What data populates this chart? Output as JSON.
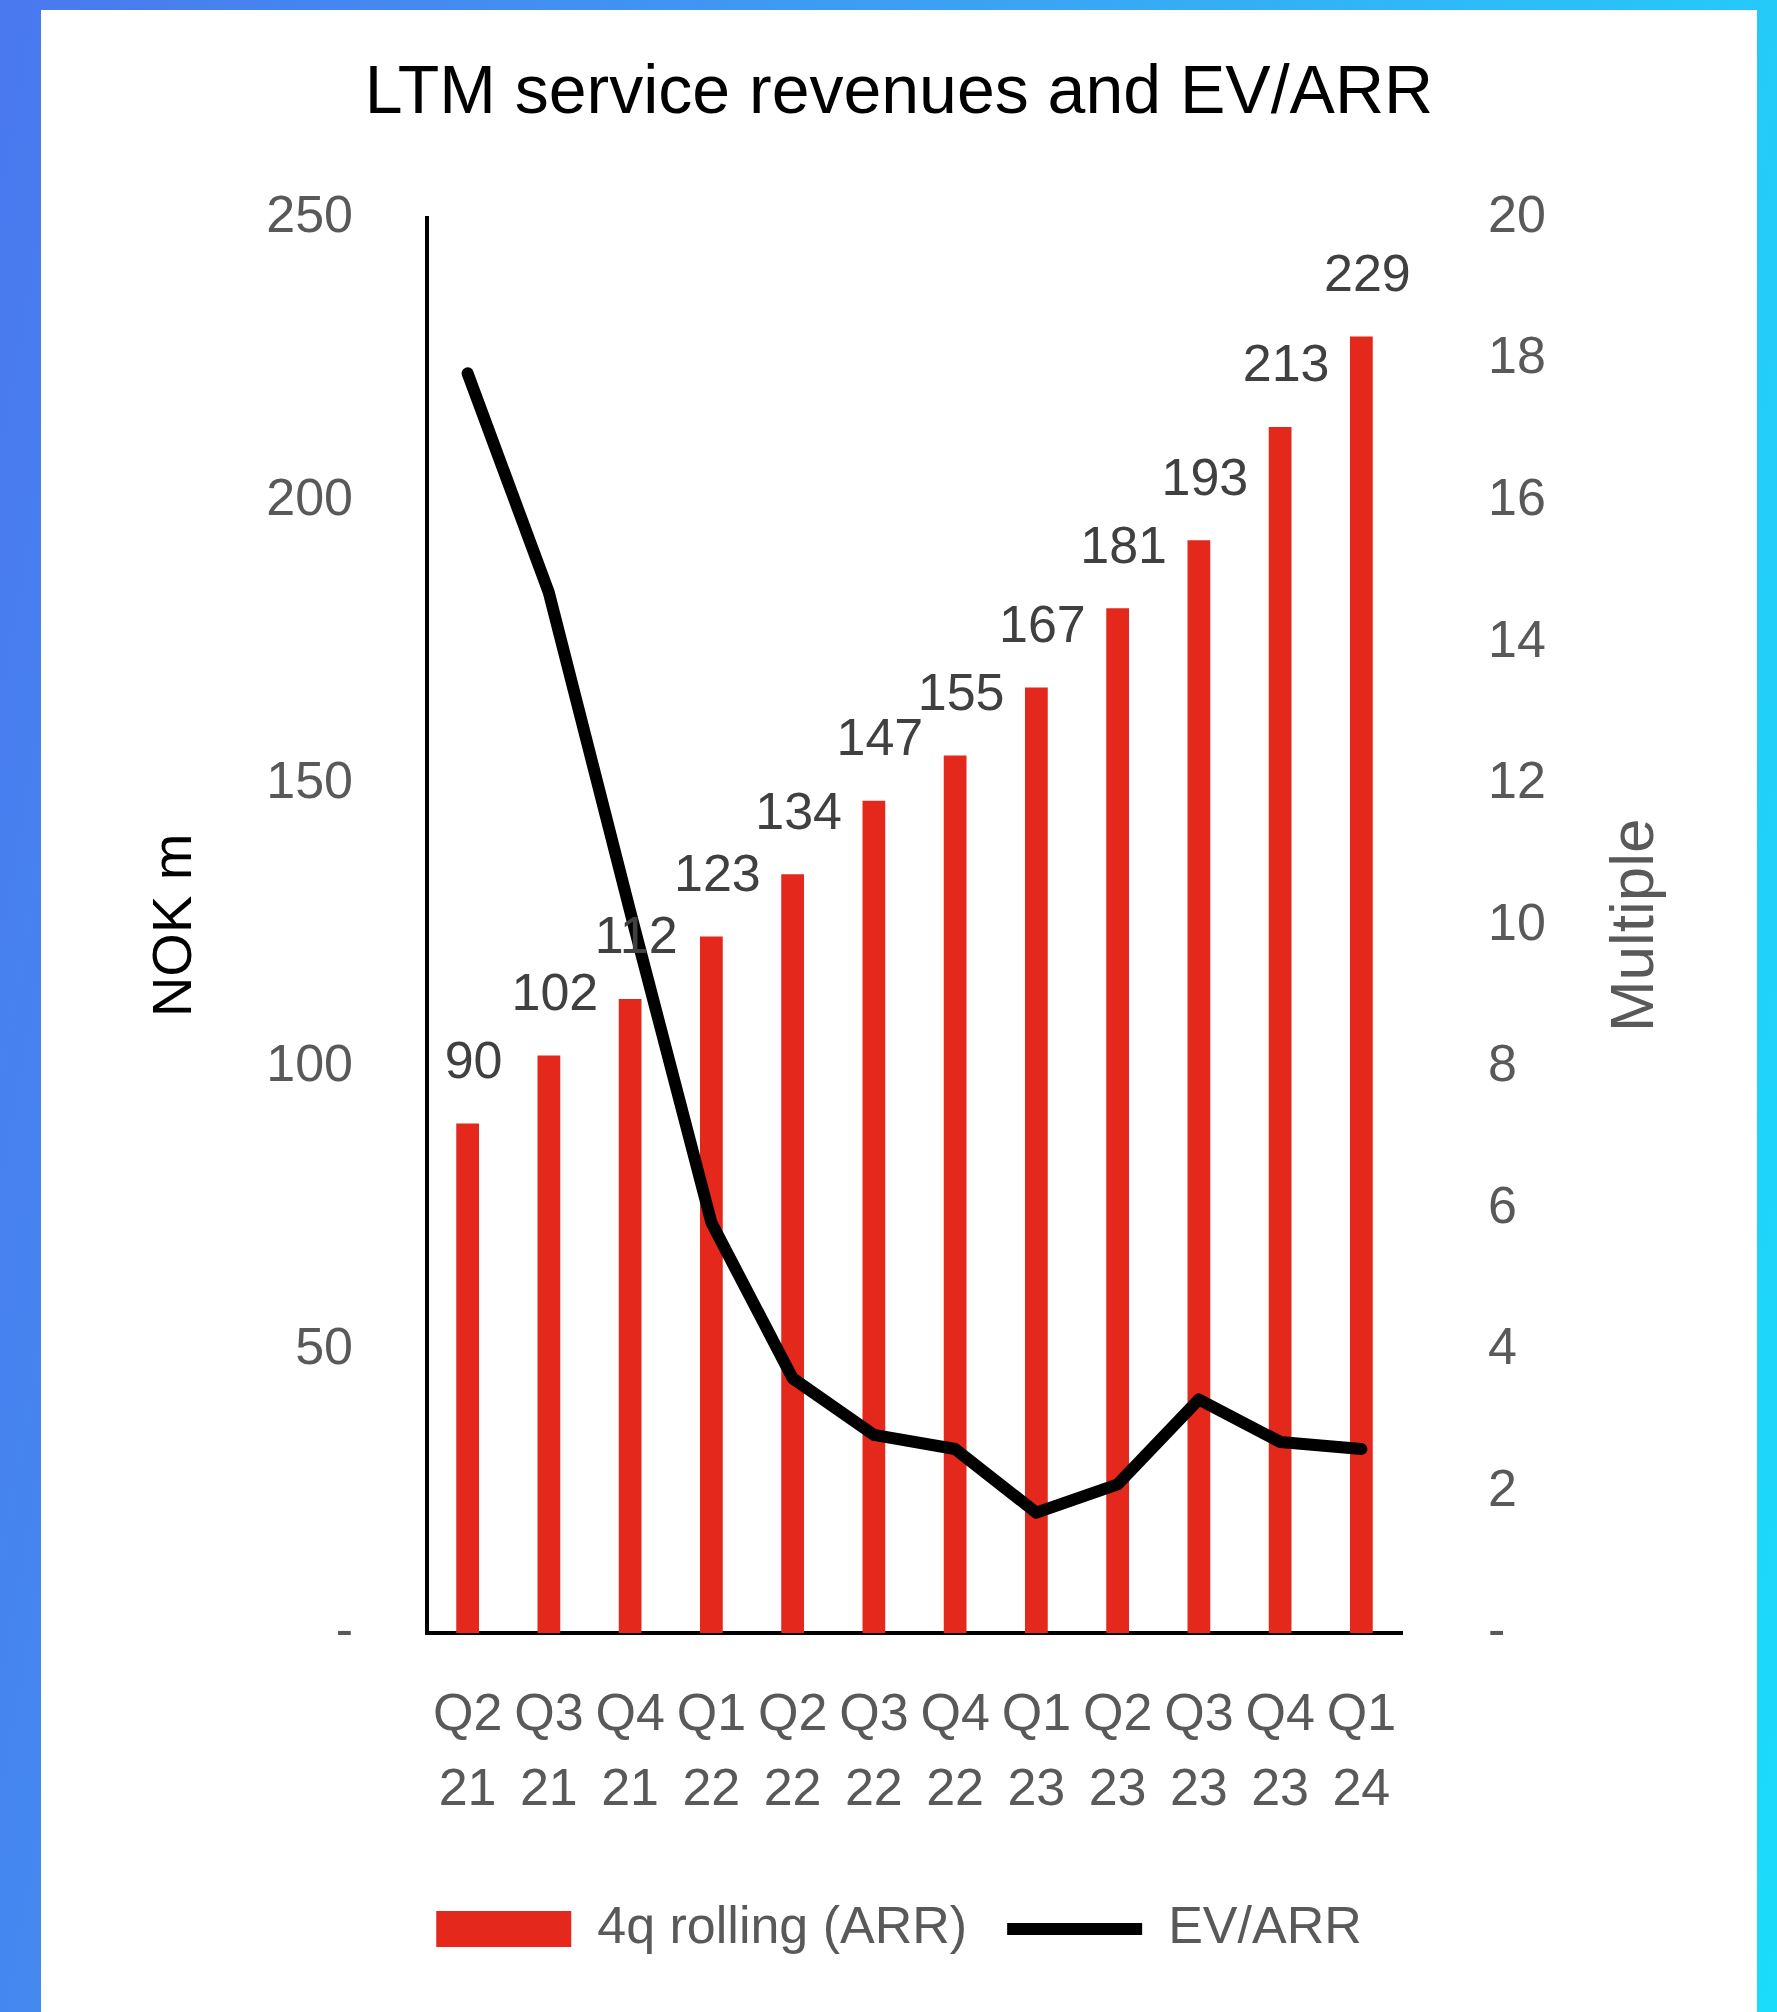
{
  "chart_data": {
    "type": "bar",
    "title": "LTM service revenues and EV/ARR",
    "ylabel": "NOK m",
    "y2label": "Multiple",
    "categories": [
      "Q2 21",
      "Q3 21",
      "Q4 21",
      "Q1 22",
      "Q2 22",
      "Q3 22",
      "Q4 22",
      "Q1 23",
      "Q2 23",
      "Q3 23",
      "Q4 23",
      "Q1 24"
    ],
    "series": [
      {
        "name": "4q rolling (ARR)",
        "color": "#e4281c",
        "values": [
          90,
          102,
          112,
          123,
          134,
          147,
          155,
          167,
          181,
          193,
          213,
          229
        ],
        "value_labels": [
          "90",
          "102",
          "112",
          "123",
          "134",
          "147",
          "155",
          "167",
          "181",
          "193",
          "213",
          "229"
        ]
      },
      {
        "name": "EV/ARR",
        "type": "line",
        "axis": "y2",
        "color": "#000000",
        "values": [
          17.8,
          14.7,
          10.2,
          5.8,
          3.6,
          2.8,
          2.6,
          1.7,
          2.1,
          3.3,
          2.7,
          2.6
        ]
      }
    ],
    "ylim": [
      0,
      250
    ],
    "yticks": [
      {
        "value": 0,
        "label": "-"
      },
      50,
      100,
      150,
      200,
      250
    ],
    "y2lim": [
      0,
      20
    ],
    "y2ticks": [
      {
        "value": 0,
        "label": "-"
      },
      2,
      4,
      6,
      8,
      10,
      12,
      14,
      16,
      18,
      20
    ],
    "legend": "bottom",
    "grid": false,
    "marker": "none",
    "line_style": "solid"
  }
}
